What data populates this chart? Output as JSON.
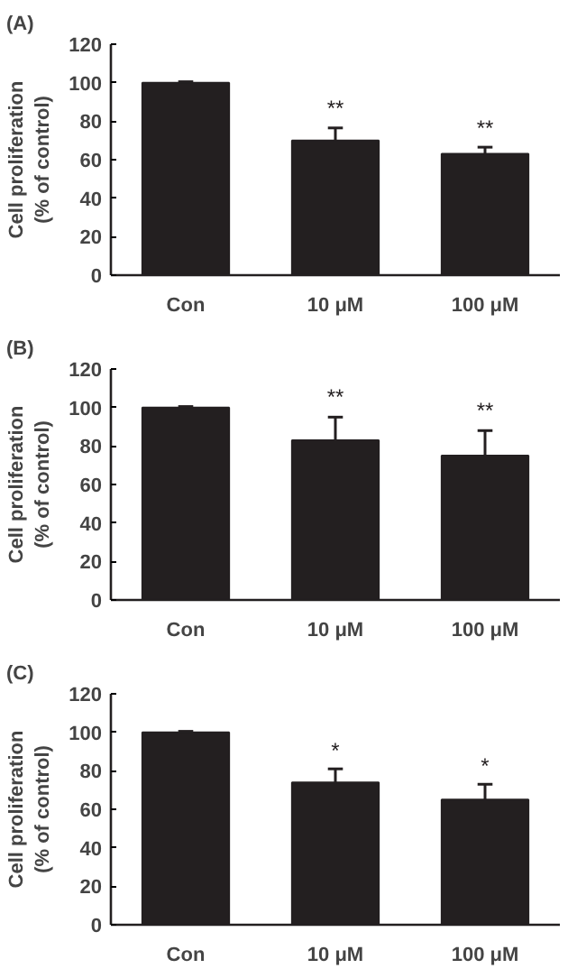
{
  "chart_data": [
    {
      "type": "bar",
      "title": "(A)",
      "ylabel": "Cell proliferation\n(% of control)",
      "categories": [
        "Con",
        "10 μM",
        "100 μM"
      ],
      "values": [
        100,
        70,
        63
      ],
      "errors": [
        [
          100,
          100.5
        ],
        [
          70,
          76.5
        ],
        [
          63,
          66.5
        ]
      ],
      "color": "#231f20",
      "ylim": [
        0,
        120
      ],
      "yticks": [
        0,
        20,
        40,
        60,
        80,
        100,
        120
      ],
      "grid": false,
      "annotations": [
        {
          "text": "**",
          "x": "10 μM",
          "y": 80
        },
        {
          "text": "**",
          "x": "100 μM",
          "y": 70
        }
      ]
    },
    {
      "type": "bar",
      "title": "(B)",
      "ylabel": "Cell proliferation\n(% of control)",
      "categories": [
        "Con",
        "10 μM",
        "100 μM"
      ],
      "values": [
        100,
        83,
        75
      ],
      "errors": [
        [
          100,
          100.5
        ],
        [
          83,
          95
        ],
        [
          75,
          88
        ]
      ],
      "color": "#231f20",
      "ylim": [
        0,
        120
      ],
      "yticks": [
        0,
        20,
        40,
        60,
        80,
        100,
        120
      ],
      "grid": false,
      "annotations": [
        {
          "text": "**",
          "x": "10 μM",
          "y": 99
        },
        {
          "text": "**",
          "x": "100 μM",
          "y": 92
        }
      ]
    },
    {
      "type": "bar",
      "title": "(C)",
      "ylabel": "Cell proliferation\n(% of control)",
      "categories": [
        "Con",
        "10 μM",
        "100 μM"
      ],
      "values": [
        100,
        74,
        65
      ],
      "errors": [
        [
          100,
          100.5
        ],
        [
          74,
          81
        ],
        [
          65,
          73
        ]
      ],
      "color": "#231f20",
      "ylim": [
        0,
        120
      ],
      "yticks": [
        0,
        20,
        40,
        60,
        80,
        100,
        120
      ],
      "grid": false,
      "annotations": [
        {
          "text": "*",
          "x": "10 μM",
          "y": 84
        },
        {
          "text": "*",
          "x": "100 μM",
          "y": 76
        }
      ]
    }
  ]
}
